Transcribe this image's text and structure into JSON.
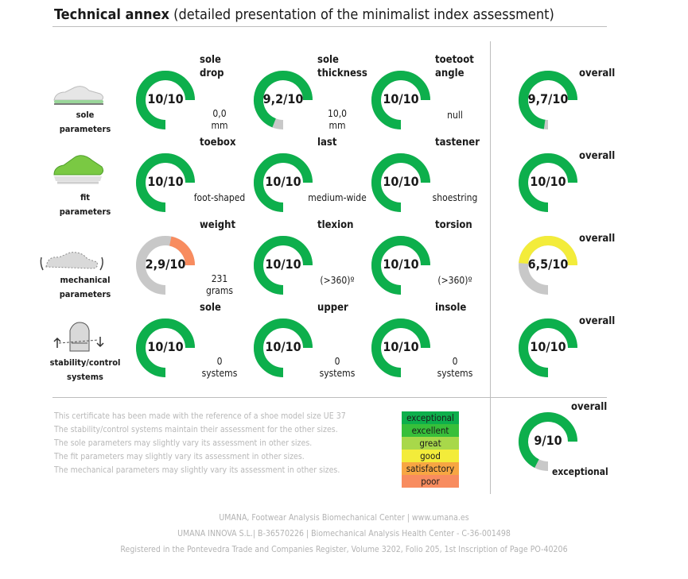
{
  "header": {
    "title_bold": "Technical annex",
    "title_rest": "(detailed presentation of the minimalist index assessment)"
  },
  "rows": [
    {
      "label_line1": "sole",
      "label_line2": "parameters",
      "icon": "shoe-side-icon",
      "params": [
        {
          "name_line1": "sole",
          "name_line2": "drop",
          "score_text": "10/10",
          "score": 10,
          "value_line1": "0,0",
          "value_line2": "mm"
        },
        {
          "name_line1": "sole",
          "name_line2": "thickness",
          "score_text": "9,2/10",
          "score": 9.2,
          "value_line1": "10,0",
          "value_line2": "mm"
        },
        {
          "name_line1": "toetoot",
          "name_line2": "angle",
          "score_text": "10/10",
          "score": 10,
          "value_line1": "null",
          "value_line2": ""
        }
      ],
      "overall": {
        "label": "overall",
        "score_text": "9,7/10",
        "score": 9.7
      }
    },
    {
      "label_line1": "fit",
      "label_line2": "parameters",
      "icon": "shoe-green-icon",
      "params": [
        {
          "name_line1": "toebox",
          "name_line2": "",
          "score_text": "10/10",
          "score": 10,
          "value_line1": "foot-shaped",
          "value_line2": ""
        },
        {
          "name_line1": "last",
          "name_line2": "",
          "score_text": "10/10",
          "score": 10,
          "value_line1": "medium-wide",
          "value_line2": ""
        },
        {
          "name_line1": "tastener",
          "name_line2": "",
          "score_text": "10/10",
          "score": 10,
          "value_line1": "shoestring",
          "value_line2": ""
        }
      ],
      "overall": {
        "label": "overall",
        "score_text": "10/10",
        "score": 10
      }
    },
    {
      "label_line1": "mechanical",
      "label_line2": "parameters",
      "icon": "shoe-twist-icon",
      "params": [
        {
          "name_line1": "weight",
          "name_line2": "",
          "score_text": "2,9/10",
          "score": 2.9,
          "value_line1": "231",
          "value_line2": "grams"
        },
        {
          "name_line1": "tlexion",
          "name_line2": "",
          "score_text": "10/10",
          "score": 10,
          "value_line1": "(>360)º",
          "value_line2": ""
        },
        {
          "name_line1": "torsion",
          "name_line2": "",
          "score_text": "10/10",
          "score": 10,
          "value_line1": "(>360)º",
          "value_line2": ""
        }
      ],
      "overall": {
        "label": "overall",
        "score_text": "6,5/10",
        "score": 6.5
      }
    },
    {
      "label_line1": "stability/control",
      "label_line2": "systems",
      "icon": "shoe-heel-icon",
      "params": [
        {
          "name_line1": "sole",
          "name_line2": "",
          "score_text": "10/10",
          "score": 10,
          "value_line1": "0",
          "value_line2": "systems"
        },
        {
          "name_line1": "upper",
          "name_line2": "",
          "score_text": "10/10",
          "score": 10,
          "value_line1": "0",
          "value_line2": "systems"
        },
        {
          "name_line1": "insole",
          "name_line2": "",
          "score_text": "10/10",
          "score": 10,
          "value_line1": "0",
          "value_line2": "systems"
        }
      ],
      "overall": {
        "label": "overall",
        "score_text": "10/10",
        "score": 10
      }
    }
  ],
  "notes": [
    "This certificate has been made with the reference of a shoe model size UE 37",
    "The stability/control systems maintain their assessment for the other sizes.",
    "The sole parameters may slightly vary its assessment in other sizes.",
    "The fit parameters may slightly vary its assessment in other sizes.",
    "The mechanical parameters may slightly vary its assessment in other sizes."
  ],
  "legend": [
    {
      "label": "exceptional",
      "color": "#0daf4c"
    },
    {
      "label": "excellent",
      "color": "#38bf3a"
    },
    {
      "label": "great",
      "color": "#a8d84a"
    },
    {
      "label": "good",
      "color": "#f3ec3a"
    },
    {
      "label": "satisfactory",
      "color": "#f7a643"
    },
    {
      "label": "poor",
      "color": "#f88c5f"
    }
  ],
  "final": {
    "label": "overall",
    "score_text": "9/10",
    "score": 9,
    "rating": "exceptional"
  },
  "footer": [
    "UMANA, Footwear Analysis Biomechanical Center  |  www.umana.es",
    "UMANA INNOVA S.L.| B-36570226 | Biomechanical Analysis Health Center - C-36-001498",
    "Registered in the Pontevedra Trade and Companies Register, Volume 3202, Folio 205, 1st Inscription of Page PO-40206"
  ],
  "colors": {
    "track": "#c8c8c8",
    "exceptional": "#0daf4c",
    "good": "#f3ec3a",
    "poor": "#f88c5f"
  }
}
